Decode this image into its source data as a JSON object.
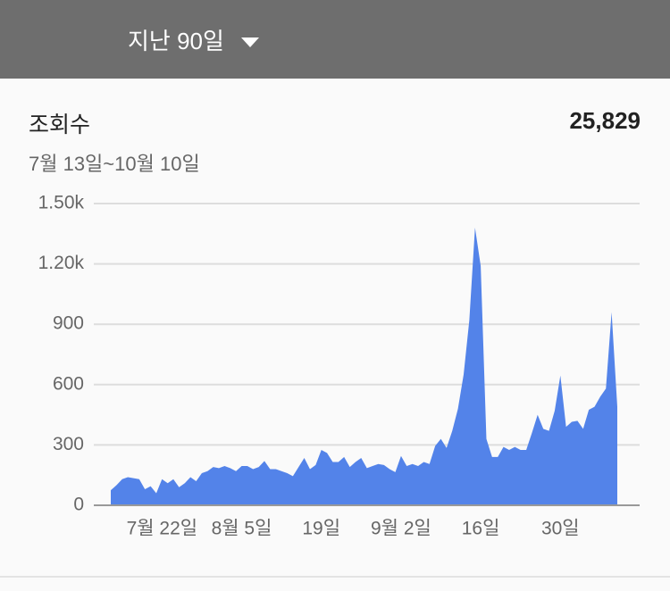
{
  "header": {
    "period": "지난 90일"
  },
  "chart_data": {
    "type": "area",
    "title": "조회수",
    "total": "25,829",
    "subtitle": "7월 13일~10월 10일",
    "color": "#5383e9",
    "categories": [
      null,
      null,
      null,
      null,
      null,
      null,
      null,
      null,
      null,
      "7월 22일",
      null,
      null,
      null,
      null,
      null,
      null,
      null,
      null,
      null,
      null,
      null,
      null,
      null,
      "8월 5일",
      null,
      null,
      null,
      null,
      null,
      null,
      null,
      null,
      null,
      null,
      null,
      null,
      null,
      "19일",
      null,
      null,
      null,
      null,
      null,
      null,
      null,
      null,
      null,
      null,
      null,
      null,
      null,
      "9월 2일",
      null,
      null,
      null,
      null,
      null,
      null,
      null,
      null,
      null,
      null,
      null,
      null,
      null,
      "16일",
      null,
      null,
      null,
      null,
      null,
      null,
      null,
      null,
      null,
      null,
      null,
      null,
      null,
      "30일",
      null,
      null,
      null,
      null,
      null,
      null,
      null,
      null,
      null,
      null
    ],
    "values": [
      75,
      100,
      130,
      140,
      135,
      130,
      80,
      95,
      60,
      130,
      110,
      130,
      90,
      110,
      140,
      120,
      160,
      170,
      190,
      185,
      195,
      185,
      170,
      195,
      195,
      180,
      190,
      220,
      180,
      180,
      170,
      160,
      145,
      190,
      235,
      180,
      200,
      275,
      260,
      215,
      215,
      240,
      190,
      215,
      235,
      185,
      195,
      205,
      200,
      180,
      165,
      245,
      195,
      205,
      195,
      215,
      205,
      295,
      330,
      285,
      370,
      480,
      650,
      920,
      1380,
      1190,
      330,
      240,
      240,
      290,
      275,
      290,
      275,
      275,
      360,
      450,
      380,
      370,
      470,
      645,
      390,
      415,
      420,
      380,
      475,
      490,
      540,
      580,
      960,
      490
    ],
    "ylim": [
      0,
      1500
    ],
    "yticks": [
      0,
      300,
      600,
      900,
      {
        "value": 1200,
        "label": "1.20k"
      },
      {
        "value": 1500,
        "label": "1.50k"
      }
    ],
    "grid": true
  }
}
